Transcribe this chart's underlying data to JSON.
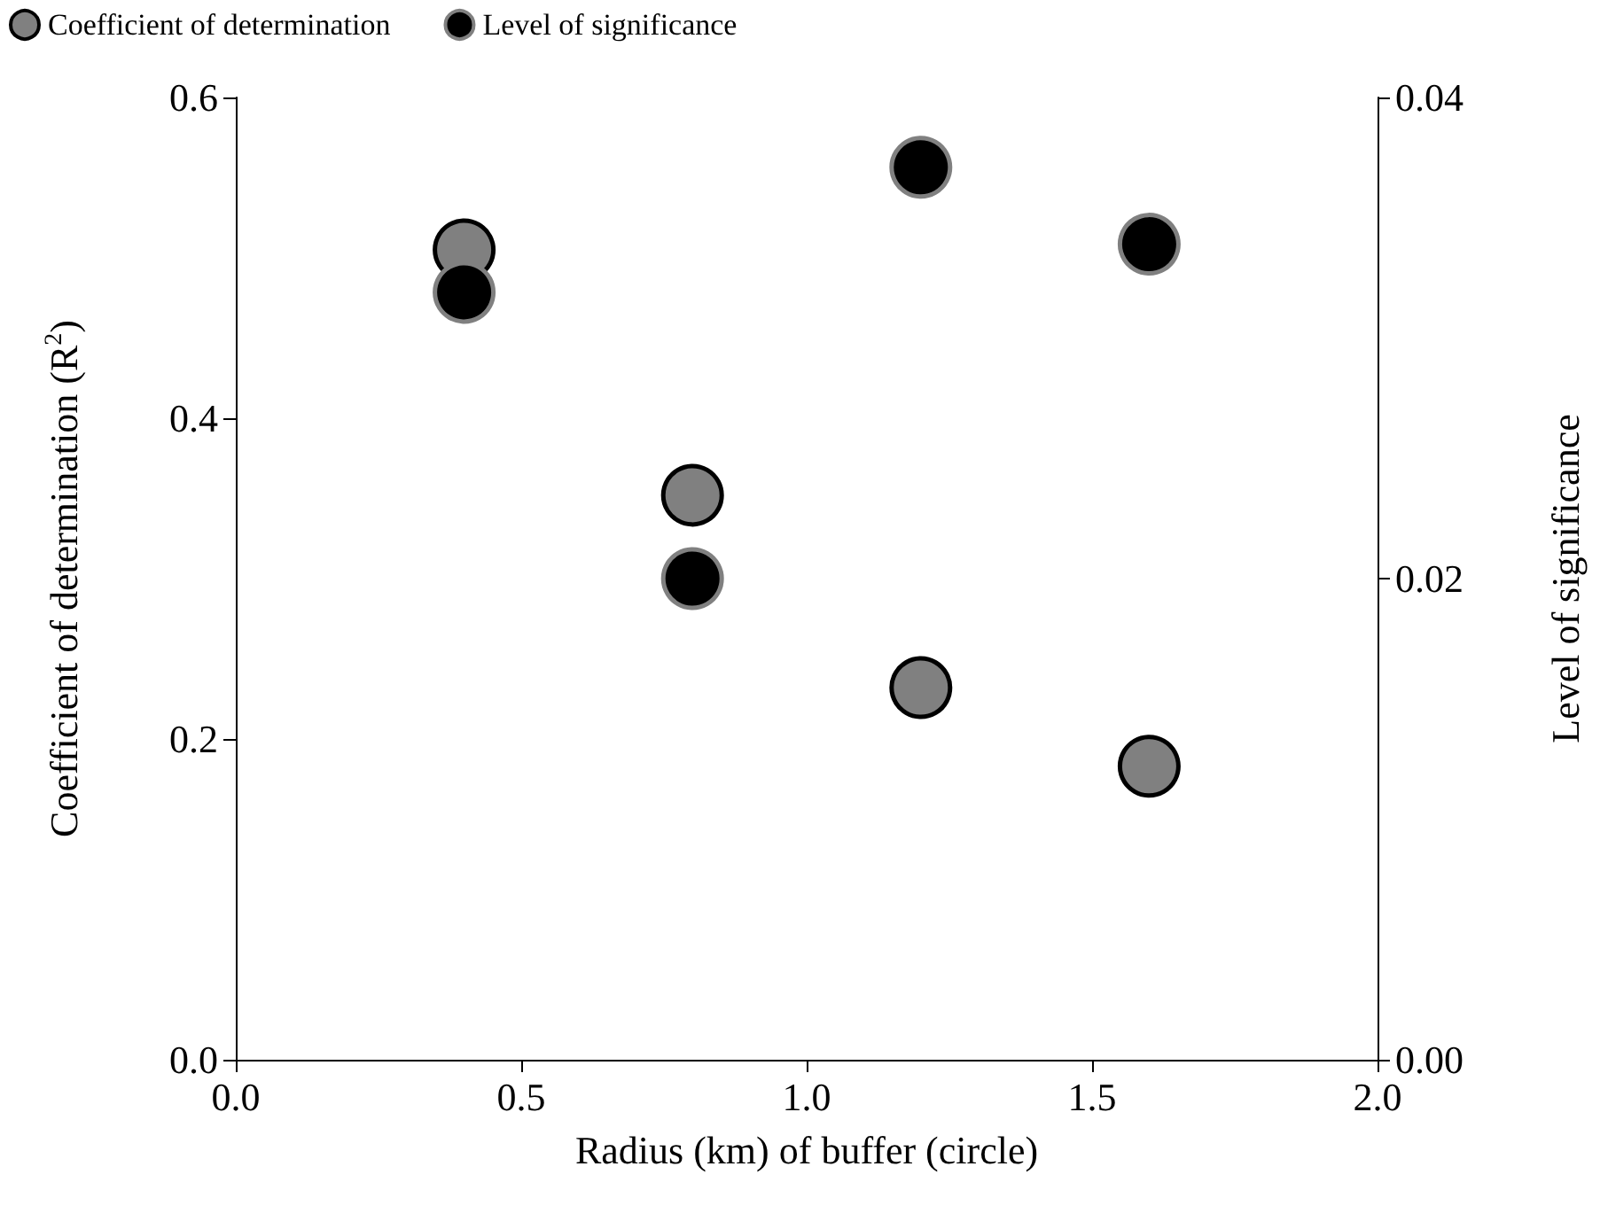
{
  "chart_data": {
    "type": "scatter",
    "xlabel": "Radius (km) of buffer (circle)",
    "ylabel": "Coefficient of determination (R$^{2}$)",
    "y2label": "Level of significance",
    "x": [
      0.4,
      0.8,
      1.2,
      1.6
    ],
    "series": [
      {
        "name": "Coefficient of determination",
        "color": "#808080",
        "values": [
          0.505,
          0.352,
          0.232,
          0.183
        ]
      },
      {
        "name": "Level of significance",
        "color": "#000000",
        "axis": "y2",
        "values": [
          0.0319,
          0.02,
          0.0371,
          0.0339
        ]
      }
    ],
    "xlim": [
      0,
      2
    ],
    "xticks": [
      {
        "value": 0,
        "label": "0.0"
      },
      {
        "value": 0.5,
        "label": "0.5"
      },
      {
        "value": 1,
        "label": "1.0"
      },
      {
        "value": 1.5,
        "label": "1.5"
      },
      {
        "value": 2,
        "label": "2.0"
      }
    ],
    "ylim": [
      0,
      0.6
    ],
    "yticks": [
      {
        "value": 0,
        "label": "0.0"
      },
      {
        "value": 0.2,
        "label": "0.2"
      },
      {
        "value": 0.4,
        "label": "0.4"
      },
      {
        "value": 0.6,
        "label": "0.6"
      }
    ],
    "y2lim": [
      0,
      0.04
    ],
    "y2ticks": [
      {
        "value": 0,
        "label": "0.00"
      },
      {
        "value": 0.02,
        "label": "0.02"
      },
      {
        "value": 0.04,
        "label": "0.04"
      }
    ],
    "grid": false,
    "legend": "top left",
    "marker": "circle"
  }
}
